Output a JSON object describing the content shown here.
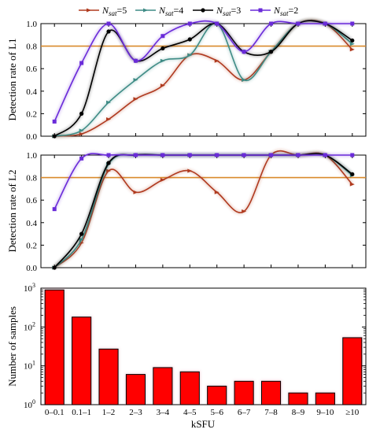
{
  "legend": {
    "items": [
      {
        "label_main": "N",
        "label_sub": "sat",
        "label_tail": "=5",
        "color": "#b03a1e",
        "marker": "triangle"
      },
      {
        "label_main": "N",
        "label_sub": "sat",
        "label_tail": "=4",
        "color": "#3f8c86",
        "marker": "triangle"
      },
      {
        "label_main": "N",
        "label_sub": "sat",
        "label_tail": "=3",
        "color": "#000000",
        "marker": "circle"
      },
      {
        "label_main": "N",
        "label_sub": "sat",
        "label_tail": "=2",
        "color": "#6a2bd9",
        "marker": "square"
      }
    ]
  },
  "chart_data": [
    {
      "type": "line",
      "ylabel": "Detection rate of L1",
      "ylim": [
        0,
        1
      ],
      "yticks": [
        "0.0",
        "0.2",
        "0.4",
        "0.6",
        "0.8",
        "1.0"
      ],
      "threshold": {
        "value": 0.8,
        "color": "#d98a2b"
      },
      "x": [
        "0–0.1",
        "0.1–1",
        "1–2",
        "2–3",
        "3–4",
        "4–5",
        "5–6",
        "6–7",
        "7–8",
        "8–9",
        "9–10",
        "≥10"
      ],
      "series": [
        {
          "name": "Nsat=5",
          "values": [
            0.0,
            0.02,
            0.15,
            0.33,
            0.45,
            0.72,
            0.67,
            0.5,
            0.75,
            1.0,
            1.0,
            0.77
          ]
        },
        {
          "name": "Nsat=4",
          "values": [
            0.0,
            0.05,
            0.3,
            0.5,
            0.67,
            0.72,
            1.0,
            0.5,
            0.75,
            1.0,
            1.0,
            0.82
          ]
        },
        {
          "name": "Nsat=3",
          "values": [
            0.0,
            0.2,
            0.93,
            0.67,
            0.78,
            0.86,
            1.0,
            0.75,
            0.75,
            1.0,
            1.0,
            0.85
          ]
        },
        {
          "name": "Nsat=2",
          "values": [
            0.13,
            0.65,
            1.0,
            0.67,
            0.89,
            1.0,
            1.0,
            0.75,
            1.0,
            1.0,
            1.0,
            1.0
          ]
        }
      ]
    },
    {
      "type": "line",
      "ylabel": "Detection rate of L2",
      "ylim": [
        0,
        1
      ],
      "yticks": [
        "0.0",
        "0.2",
        "0.4",
        "0.6",
        "0.8",
        "1.0"
      ],
      "threshold": {
        "value": 0.8,
        "color": "#d98a2b"
      },
      "x": [
        "0–0.1",
        "0.1–1",
        "1–2",
        "2–3",
        "3–4",
        "4–5",
        "5–6",
        "6–7",
        "7–8",
        "8–9",
        "9–10",
        "≥10"
      ],
      "series": [
        {
          "name": "Nsat=5",
          "values": [
            0.0,
            0.22,
            0.86,
            0.67,
            0.78,
            0.86,
            0.67,
            0.5,
            1.0,
            1.0,
            1.0,
            0.74
          ]
        },
        {
          "name": "Nsat=4",
          "values": [
            0.0,
            0.25,
            0.92,
            1.0,
            1.0,
            1.0,
            1.0,
            1.0,
            1.0,
            1.0,
            1.0,
            0.82
          ]
        },
        {
          "name": "Nsat=3",
          "values": [
            0.0,
            0.3,
            0.93,
            1.0,
            1.0,
            1.0,
            1.0,
            1.0,
            1.0,
            1.0,
            1.0,
            0.83
          ]
        },
        {
          "name": "Nsat=2",
          "values": [
            0.52,
            0.97,
            1.0,
            1.0,
            1.0,
            1.0,
            1.0,
            1.0,
            1.0,
            1.0,
            1.0,
            1.0
          ]
        }
      ]
    },
    {
      "type": "bar",
      "xlabel": "kSFU",
      "ylabel": "Number of samples",
      "yscale": "log",
      "ylim": [
        1,
        1000
      ],
      "yticks": [
        {
          "base": "10",
          "exp": "0"
        },
        {
          "base": "10",
          "exp": "1"
        },
        {
          "base": "10",
          "exp": "2"
        },
        {
          "base": "10",
          "exp": "3"
        }
      ],
      "categories": [
        "0–0.1",
        "0.1–1",
        "1–2",
        "2–3",
        "3–4",
        "4–5",
        "5–6",
        "6–7",
        "7–8",
        "8–9",
        "9–10",
        "≥10"
      ],
      "values": [
        900,
        180,
        27,
        6,
        9,
        7,
        3,
        4,
        4,
        2,
        2,
        53
      ],
      "bar_color": "#ff0000"
    }
  ]
}
